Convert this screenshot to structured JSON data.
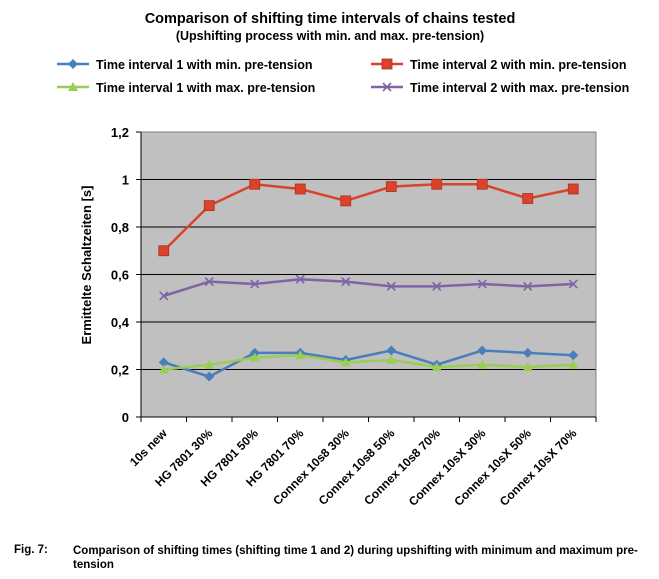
{
  "chart_data": {
    "type": "line",
    "title": "Comparison of shifting time intervals of chains tested",
    "subtitle": "(Upshifting process with min. and max. pre-tension)",
    "xlabel": "",
    "ylabel": "Ermittelte Schaltzeiten [s]",
    "ylim": [
      0,
      1.2
    ],
    "yticks": [
      "0",
      "0,2",
      "0,4",
      "0,6",
      "0,8",
      "1",
      "1,2"
    ],
    "ytick_values": [
      0,
      0.2,
      0.4,
      0.6,
      0.8,
      1.0,
      1.2
    ],
    "grid": true,
    "background": "#c0c0c0",
    "categories": [
      "10s new",
      "HG 7801 30%",
      "HG 7801 50%",
      "HG 7801 70%",
      "Connex 10s8 30%",
      "Connex 10s8 50%",
      "Connex 10s8 70%",
      "Connex 10sX 30%",
      "Connex 10sX 50%",
      "Connex 10sX 70%"
    ],
    "series": [
      {
        "name": "Time interval 1 with min. pre-tension",
        "color": "#4a7ebb",
        "marker": "diamond",
        "values": [
          0.23,
          0.17,
          0.27,
          0.27,
          0.24,
          0.28,
          0.22,
          0.28,
          0.27,
          0.26
        ]
      },
      {
        "name": "Time interval 2 with min. pre-tension",
        "color": "#d9432c",
        "marker": "square",
        "values": [
          0.7,
          0.89,
          0.98,
          0.96,
          0.91,
          0.97,
          0.98,
          0.98,
          0.92,
          0.96
        ]
      },
      {
        "name": "Time interval 1 with max. pre-tension",
        "color": "#9bcd55",
        "marker": "triangle",
        "values": [
          0.2,
          0.22,
          0.25,
          0.26,
          0.23,
          0.24,
          0.21,
          0.22,
          0.21,
          0.22
        ]
      },
      {
        "name": "Time interval 2 with max. pre-tension",
        "color": "#7e65a5",
        "marker": "x",
        "values": [
          0.51,
          0.57,
          0.56,
          0.58,
          0.57,
          0.55,
          0.55,
          0.56,
          0.55,
          0.56
        ]
      }
    ]
  },
  "caption": {
    "label": "Fig. 7:",
    "text": "Comparison of shifting times (shifting time 1 and 2) during upshifting with minimum and maximum pre-tension"
  }
}
